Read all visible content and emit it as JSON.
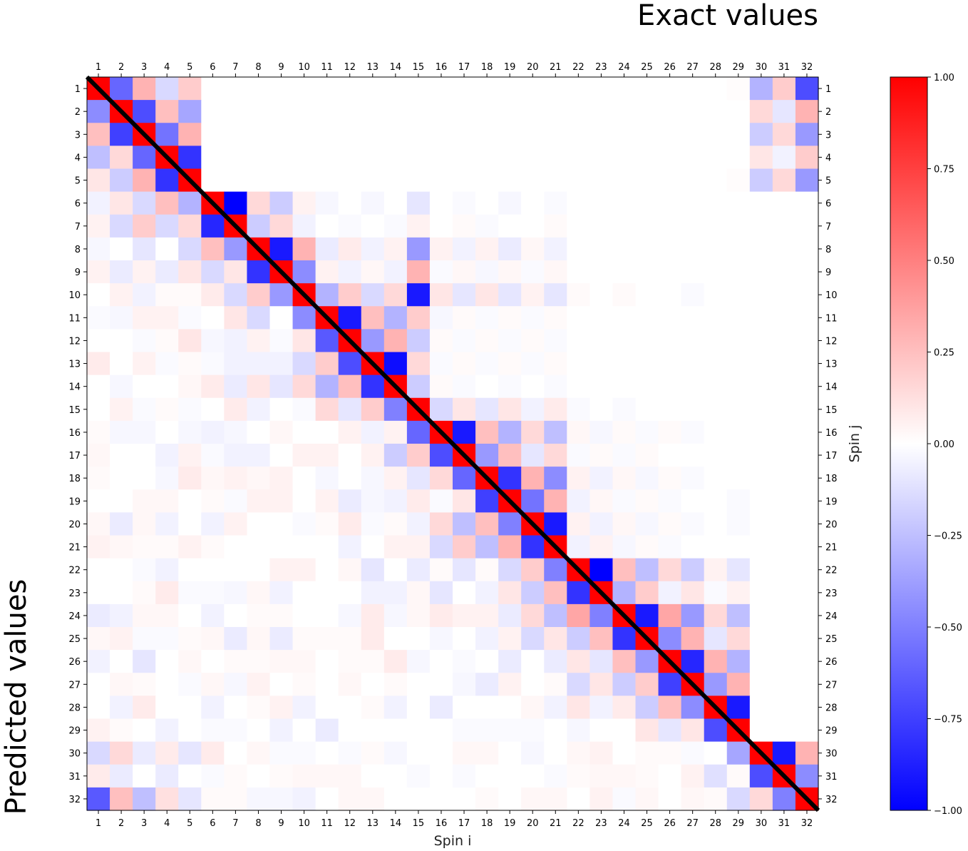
{
  "chart_data": {
    "type": "heatmap",
    "title": "Exact values",
    "side_label": "Predicted values",
    "xlabel": "Spin i",
    "ylabel": "Spin j",
    "x_ticks": [
      "1",
      "2",
      "3",
      "4",
      "5",
      "6",
      "7",
      "8",
      "9",
      "10",
      "11",
      "12",
      "13",
      "14",
      "15",
      "16",
      "17",
      "18",
      "19",
      "20",
      "21",
      "22",
      "23",
      "24",
      "25",
      "26",
      "27",
      "28",
      "29",
      "30",
      "31",
      "32"
    ],
    "y_ticks": [
      "1",
      "2",
      "3",
      "4",
      "5",
      "6",
      "7",
      "8",
      "9",
      "10",
      "11",
      "12",
      "13",
      "14",
      "15",
      "16",
      "17",
      "18",
      "19",
      "20",
      "21",
      "22",
      "23",
      "24",
      "25",
      "26",
      "27",
      "28",
      "29",
      "30",
      "31",
      "32"
    ],
    "colorbar": {
      "vmin": -1.0,
      "vmax": 1.0,
      "ticks": [
        "1.00",
        "0.75",
        "0.50",
        "0.25",
        "0.00",
        "−0.25",
        "−0.50",
        "−0.75",
        "−1.00"
      ],
      "colormap": "bwr",
      "low_color": "#0000ff",
      "mid_color": "#ffffff",
      "high_color": "#ff0000"
    },
    "diagonal_line_color": "#000000",
    "matrix_rows": [
      "1.00 -0.60 0.30 -0.15 0.20 0.00 0.00 0.00 0.00 0.00 0.00 0.00 0.00 0.00 0.00 0.00 0.00 0.00 0.00 0.00 0.00 0.00 0.00 0.00 0.00 0.00 0.00 0.00 0.01 -0.30 0.20 -0.70",
      "-0.45 1.00 -0.70 0.25 -0.35 0.00 0.00 0.00 0.00 0.00 0.00 0.00 0.00 0.00 0.00 0.00 0.00 0.00 0.00 0.00 0.00 0.00 0.00 0.00 0.00 0.00 0.00 0.00 0.00 0.15 -0.10 0.30",
      "0.25 -0.75 1.00 -0.55 0.30 0.00 0.00 0.00 0.00 0.00 0.00 0.00 0.00 0.00 0.00 0.00 0.00 0.00 0.00 0.00 0.00 0.00 0.00 0.00 0.00 0.00 0.00 0.00 0.00 -0.20 0.15 -0.40",
      "-0.25 0.15 -0.60 1.00 -0.80 0.00 0.00 0.00 0.00 0.00 0.00 0.00 0.00 0.00 0.00 0.00 0.00 0.00 0.00 0.00 0.00 0.00 0.00 0.00 0.00 0.00 0.00 0.00 0.00 0.10 -0.05 0.20",
      "0.10 -0.20 0.30 -0.80 1.00 0.00 0.00 0.00 0.00 0.00 0.00 0.00 0.00 0.00 0.00 0.00 0.00 0.00 0.00 0.00 0.00 0.00 0.00 0.00 0.00 0.00 0.00 0.00 0.01 -0.20 0.15 -0.40",
      "-0.05 0.10 -0.15 0.25 -0.30 1.00 -1.00 0.15 -0.20 0.05 -0.03 0.00 -0.03 0.00 -0.10 0.00 -0.02 0.00 -0.03 0.00 -0.02 0.00 0.00 0.00 0.00 0.00 0.00 0.00 0.00 0.00 0.00 0.00",
      "0.05 -0.15 0.20 -0.15 0.15 -0.85 1.00 -0.20 0.15 -0.05 0.00 -0.02 0.00 -0.02 0.05 0.00 0.02 -0.02 0.00 0.00 0.02 0.00 0.00 0.00 0.00 0.00 0.00 0.00 0.00 0.00 0.00 0.00",
      "-0.03 0.00 -0.10 0.00 -0.15 0.25 -0.40 1.00 -0.90 0.30 -0.08 0.08 -0.05 0.05 -0.40 0.05 -0.05 0.05 -0.08 0.03 -0.05 0.00 0.00 0.00 0.00 0.00 0.00 0.00 0.00 0.00 0.00 0.00",
      "0.05 -0.08 0.05 -0.08 0.10 -0.15 0.10 -0.80 1.00 -0.45 0.05 -0.05 0.03 -0.05 0.30 -0.02 0.03 -0.03 0.03 -0.02 0.03 0.00 0.00 0.00 0.00 0.00 0.00 0.00 0.00 0.00 0.00 0.00",
      "0.00 0.05 -0.05 0.02 0.02 0.08 -0.15 0.20 -0.40 1.00 -0.30 0.20 -0.15 0.15 -0.90 0.10 -0.10 0.10 -0.10 0.05 -0.10 0.02 0.00 0.02 0.00 0.00 -0.02 0.00 0.00 0.00 0.00 0.00",
      "-0.02 -0.03 0.05 0.05 -0.02 0.00 0.10 -0.15 0.00 -0.45 1.00 -0.90 0.25 -0.30 0.20 -0.03 0.02 -0.02 0.02 -0.02 0.02 0.00 0.00 0.00 0.00 0.00 0.00 0.00 0.00 0.00 0.00 0.00",
      "0.00 0.00 -0.02 0.02 0.10 -0.03 -0.05 0.05 -0.02 0.10 -0.65 1.00 -0.40 0.30 -0.20 0.02 -0.02 0.02 -0.02 0.02 -0.02 0.00 0.00 0.00 0.00 0.00 0.00 0.00 0.00 0.00 0.00 0.00",
      "0.08 0.00 0.05 -0.02 0.02 -0.02 -0.05 -0.05 -0.05 -0.15 0.20 -0.70 1.00 -0.95 0.15 -0.02 0.02 -0.02 0.02 -0.02 0.02 0.00 0.00 0.00 0.00 0.00 0.00 0.00 0.00 0.00 0.00 0.00",
      "0.00 -0.03 0.00 0.00 0.03 0.08 -0.08 0.10 -0.10 0.15 -0.30 0.25 -0.80 1.00 -0.20 0.02 -0.02 0.00 -0.02 0.00 -0.02 0.00 0.00 0.00 0.00 0.00 0.00 0.00 0.00 0.00 0.00 0.00",
      "0.00 0.05 -0.02 0.02 -0.02 0.00 0.08 -0.05 0.00 -0.02 0.15 -0.10 0.20 -0.50 1.00 -0.15 0.10 -0.10 0.10 -0.05 0.08 -0.02 0.00 -0.02 0.00 0.00 0.00 0.00 0.00 0.00 0.00 0.00",
      "0.02 -0.03 -0.03 0.00 -0.03 -0.05 -0.03 0.00 0.03 0.00 0.00 0.05 -0.05 0.05 -0.60 1.00 -0.90 0.25 -0.30 0.15 -0.25 0.03 -0.03 0.02 -0.02 0.02 -0.02 0.00 0.00 0.00 0.00 0.00",
      "0.03 0.00 0.00 -0.05 0.05 -0.02 -0.05 -0.05 0.00 0.05 0.05 0.00 0.05 -0.20 0.20 -0.70 1.00 -0.40 0.25 -0.10 0.15 -0.02 0.02 -0.02 0.02 0.00 0.00 0.00 0.00 0.00 0.00 0.00",
      "0.02 0.00 0.00 -0.03 0.08 0.03 0.05 0.03 0.05 0.00 -0.03 0.00 -0.03 0.05 -0.10 0.15 -0.60 1.00 -0.80 0.30 -0.45 0.05 -0.05 0.03 -0.03 0.02 -0.02 0.00 0.00 0.00 0.00 0.00",
      "0.00 0.00 0.03 0.03 0.00 0.02 -0.02 0.05 0.05 0.00 0.05 -0.08 -0.03 -0.05 0.08 -0.02 0.10 -0.75 1.00 -0.55 0.30 -0.05 0.03 -0.02 0.02 -0.02 0.00 0.00 -0.02 0.00 0.00 0.00",
      "0.03 -0.08 0.03 -0.05 0.00 -0.05 0.05 0.00 0.00 -0.02 0.02 0.08 -0.02 0.02 -0.05 0.15 -0.25 0.25 -0.50 1.00 -0.90 0.05 -0.05 0.03 -0.03 0.02 -0.02 0.00 -0.02 0.00 0.00 0.00",
      "0.05 0.03 0.02 0.02 0.05 0.02 0.00 0.00 0.00 0.00 0.00 -0.05 0.00 0.05 0.05 -0.15 0.20 -0.25 0.30 -0.80 1.00 -0.05 0.05 -0.03 0.02 -0.02 0.00 0.00 0.00 0.00 0.00 0.00",
      "0.00 0.00 -0.02 -0.05 0.00 0.00 0.00 0.00 0.05 0.05 0.00 0.03 -0.10 0.00 -0.08 0.02 -0.10 0.02 -0.15 0.20 -0.50 1.00 -1.00 0.25 -0.25 0.15 -0.20 0.05 -0.10 0.00 0.00 0.00",
      "0.00 0.00 0.02 0.08 -0.02 -0.02 -0.03 0.03 -0.05 0.00 0.00 0.00 -0.05 -0.05 0.03 -0.10 0.00 -0.05 0.10 -0.20 0.25 -0.80 1.00 -0.30 0.20 -0.05 0.10 -0.02 0.05 0.00 0.00 0.00",
      "-0.08 -0.05 0.03 0.03 0.00 -0.05 0.00 0.02 0.02 0.00 0.00 -0.03 0.08 -0.03 0.03 0.08 0.05 0.05 -0.08 0.15 -0.25 0.35 -0.50 1.00 -0.90 0.35 -0.40 0.15 -0.25 0.00 0.00 0.00",
      "0.03 0.05 -0.02 -0.02 0.02 0.03 -0.08 0.03 -0.08 0.02 0.02 0.02 0.08 0.00 0.00 -0.03 0.00 -0.05 0.05 -0.15 0.10 -0.20 0.25 -0.80 1.00 -0.45 0.30 -0.10 0.15 0.00 0.00 0.00",
      "-0.05 0.00 -0.10 0.00 0.03 0.00 0.02 0.02 0.03 0.03 0.00 0.02 0.02 0.08 -0.03 0.00 -0.02 0.00 -0.08 0.00 -0.08 0.10 -0.10 0.25 -0.40 1.00 -0.85 0.30 -0.30 0.00 0.00 0.00",
      "0.00 0.03 0.02 0.00 -0.02 0.03 -0.03 0.05 0.00 0.02 0.00 0.03 0.00 0.02 0.00 0.00 -0.03 -0.08 0.05 0.00 0.02 -0.15 0.10 -0.20 0.20 -0.75 1.00 -0.40 0.30 0.00 0.00 0.00",
      "0.00 -0.05 0.08 0.00 0.00 -0.05 0.00 0.02 0.05 -0.05 0.00 0.00 0.02 -0.05 0.00 -0.08 0.00 0.00 0.00 0.03 -0.05 0.10 -0.05 0.08 -0.20 0.25 -0.45 1.00 -0.90 0.00 0.00 0.00",
      "0.05 0.02 0.00 -0.05 0.00 -0.02 -0.02 0.00 -0.05 0.00 -0.08 0.00 0.00 0.00 0.00 0.00 -0.02 -0.02 -0.02 -0.02 0.00 -0.03 0.00 0.00 0.10 -0.10 0.10 -0.70 1.00 0.00 0.00 0.00",
      "-0.15 0.15 -0.08 0.08 -0.10 0.08 0.00 0.03 -0.02 -0.02 0.00 -0.02 0.02 -0.03 0.00 0.00 0.03 0.03 0.00 -0.03 0.00 0.03 0.05 0.00 0.02 0.02 -0.02 0.00 -0.35 1.00 -0.90 0.30",
      "0.08 -0.08 0.00 -0.08 0.00 -0.02 0.02 0.00 0.02 0.03 0.03 0.03 0.00 0.00 -0.02 0.00 -0.02 0.00 0.00 0.00 -0.02 0.02 0.03 0.03 0.02 0.00 0.05 -0.12 0.02 -0.70 1.00 -0.45",
      "-0.65 0.25 -0.25 0.12 -0.10 0.02 0.02 -0.03 -0.03 -0.05 0.00 0.03 0.03 0.00 0.00 0.00 0.00 0.02 0.00 0.03 0.03 0.00 0.05 -0.02 0.03 0.00 0.03 0.02 -0.15 0.15 -0.50 1.00"
    ]
  }
}
